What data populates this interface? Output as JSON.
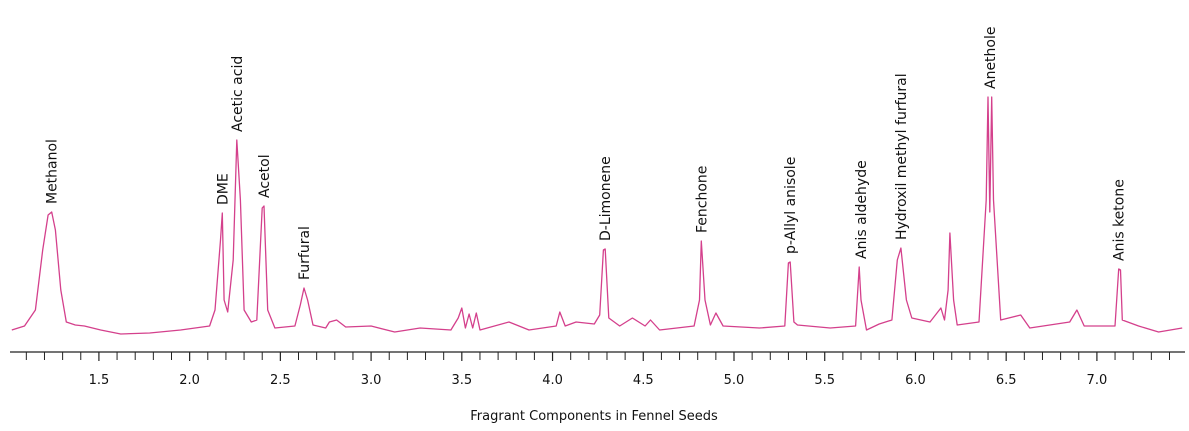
{
  "chart_data": {
    "type": "line",
    "x_label": "Fragrant Components in Fennel Seeds",
    "color": "#d4408c",
    "x": [
      1.02,
      1.09,
      1.15,
      1.19,
      1.22,
      1.24,
      1.26,
      1.29,
      1.32,
      1.37,
      1.42,
      1.51,
      1.62,
      1.78,
      1.95,
      2.11,
      2.14,
      2.17,
      2.18,
      2.19,
      2.21,
      2.24,
      2.26,
      2.28,
      2.3,
      2.34,
      2.37,
      2.4,
      2.41,
      2.43,
      2.47,
      2.58,
      2.61,
      2.63,
      2.65,
      2.68,
      2.75,
      2.77,
      2.81,
      2.86,
      3.0,
      3.13,
      3.27,
      3.44,
      3.48,
      3.5,
      3.52,
      3.54,
      3.56,
      3.58,
      3.6,
      3.76,
      3.87,
      4.02,
      4.04,
      4.07,
      4.13,
      4.23,
      4.26,
      4.28,
      4.29,
      4.31,
      4.37,
      4.44,
      4.51,
      4.54,
      4.59,
      4.78,
      4.81,
      4.82,
      4.84,
      4.87,
      4.9,
      4.94,
      5.14,
      5.28,
      5.3,
      5.31,
      5.33,
      5.35,
      5.53,
      5.67,
      5.69,
      5.7,
      5.73,
      5.8,
      5.87,
      5.9,
      5.92,
      5.95,
      5.98,
      6.08,
      6.14,
      6.16,
      6.18,
      6.19,
      6.21,
      6.23,
      6.35,
      6.39,
      6.4,
      6.41,
      6.42,
      6.43,
      6.47,
      6.58,
      6.63,
      6.85,
      6.89,
      6.93,
      7.1,
      7.12,
      7.13,
      7.14,
      7.23,
      7.34,
      7.47
    ],
    "values": [
      22,
      26,
      42,
      102,
      137,
      140,
      122,
      62,
      30,
      27,
      26,
      22,
      18,
      19,
      22,
      26,
      42,
      112,
      139,
      52,
      40,
      92,
      212,
      152,
      42,
      30,
      32,
      144,
      146,
      42,
      24,
      26,
      47,
      64,
      52,
      27,
      24,
      30,
      32,
      25,
      26,
      20,
      24,
      22,
      34,
      44,
      24,
      38,
      24,
      39,
      22,
      30,
      22,
      26,
      40,
      26,
      30,
      28,
      37,
      102,
      103,
      34,
      26,
      34,
      26,
      32,
      22,
      26,
      52,
      111,
      52,
      27,
      39,
      26,
      24,
      26,
      89,
      90,
      30,
      27,
      24,
      26,
      85,
      52,
      22,
      28,
      32,
      92,
      104,
      52,
      34,
      30,
      44,
      32,
      62,
      119,
      52,
      27,
      30,
      152,
      255,
      140,
      255,
      152,
      32,
      37,
      24,
      30,
      42,
      26,
      26,
      83,
      82,
      32,
      26,
      20,
      24
    ],
    "xlim": [
      1.01,
      7.48
    ],
    "ylim": [
      0,
      260
    ],
    "xticks": [
      1.5,
      {
        "value": 2,
        "label": "2.0"
      },
      2.5,
      {
        "value": 3,
        "label": "3.0"
      },
      3.5,
      {
        "value": 4,
        "label": "4.0"
      },
      4.5,
      {
        "value": 5,
        "label": "5.0"
      },
      5.5,
      {
        "value": 6,
        "label": "6.0"
      },
      6.5,
      {
        "value": 7,
        "label": "7.0"
      }
    ],
    "minor_xticks": [
      1.1,
      1.2,
      1.3,
      1.4,
      1.6,
      1.7,
      1.8,
      1.9,
      2.1,
      2.2,
      2.3,
      2.4,
      2.6,
      2.7,
      2.8,
      2.9,
      3.1,
      3.2,
      3.3,
      3.4,
      3.6,
      3.7,
      3.8,
      3.9,
      4.1,
      4.2,
      4.3,
      4.4,
      4.6,
      4.7,
      4.8,
      4.9,
      5.1,
      5.2,
      5.3,
      5.4,
      5.6,
      5.7,
      5.8,
      5.9,
      6.1,
      6.2,
      6.3,
      6.4,
      6.6,
      6.7,
      6.8,
      6.9,
      7.1,
      7.2,
      7.3,
      7.4
    ],
    "annotations": [
      {
        "text": "Methanol",
        "x": 1.24
      },
      {
        "text": "DME",
        "x": 2.18
      },
      {
        "text": "Acetic acid",
        "x": 2.26
      },
      {
        "text": "Acetol",
        "x": 2.41
      },
      {
        "text": "Furfural",
        "x": 2.63
      },
      {
        "text": "D-Limonene",
        "x": 4.29
      },
      {
        "text": "Fenchone",
        "x": 4.82
      },
      {
        "text": "p-Allyl anisole",
        "x": 5.31
      },
      {
        "text": "Anis aldehyde",
        "x": 5.7
      },
      {
        "text": "Hydroxil methyl furfural",
        "x": 5.92
      },
      {
        "text": "Anethole",
        "x": 6.41
      },
      {
        "text": "Anis ketone",
        "x": 7.12
      }
    ]
  }
}
